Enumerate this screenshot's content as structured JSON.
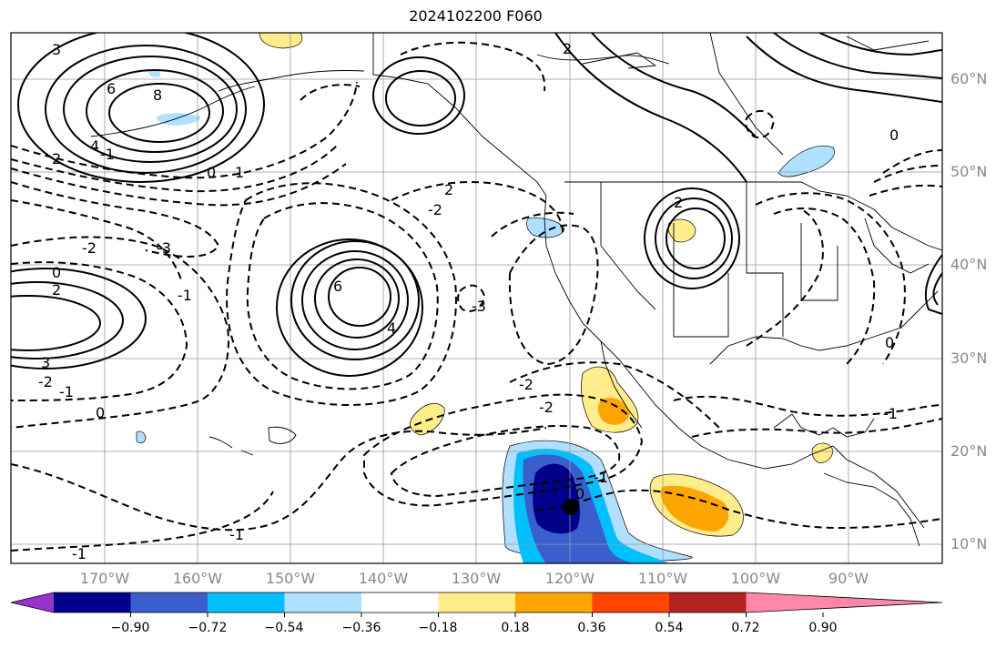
{
  "title": "2024102200 F060",
  "latitude_labels": [
    "60°N",
    "50°N",
    "40°N",
    "30°N",
    "20°N",
    "10°N"
  ],
  "longitude_labels": [
    "170°W",
    "160°W",
    "150°W",
    "140°W",
    "130°W",
    "120°W",
    "110°W",
    "100°W",
    "90°W"
  ],
  "colorbar": {
    "ticks": [
      "−0.90",
      "−0.72",
      "−0.54",
      "−0.36",
      "−0.18",
      "0.18",
      "0.36",
      "0.54",
      "0.72",
      "0.90"
    ],
    "colors": [
      "#9932cc",
      "#00008b",
      "#3a5fcd",
      "#00bfff",
      "#b0e0ff",
      "#ffffff",
      "#ffec8b",
      "#ffa500",
      "#ff4500",
      "#b22222",
      "#ff88aa"
    ]
  },
  "contour_labels": [
    "3",
    "6",
    "8",
    "4",
    "2",
    "1",
    "0",
    "-3",
    "-2",
    "-1",
    "6",
    "4",
    "2",
    "0",
    "2",
    "-2",
    "-1",
    "-3",
    "2",
    "-2",
    "-2",
    "-1",
    "0",
    "-1",
    "2",
    "0",
    "-1",
    "0",
    "-2",
    "-1",
    "0",
    "-1",
    "3"
  ],
  "markers": [
    {
      "name": "storm-center",
      "symbol": "dot"
    }
  ]
}
